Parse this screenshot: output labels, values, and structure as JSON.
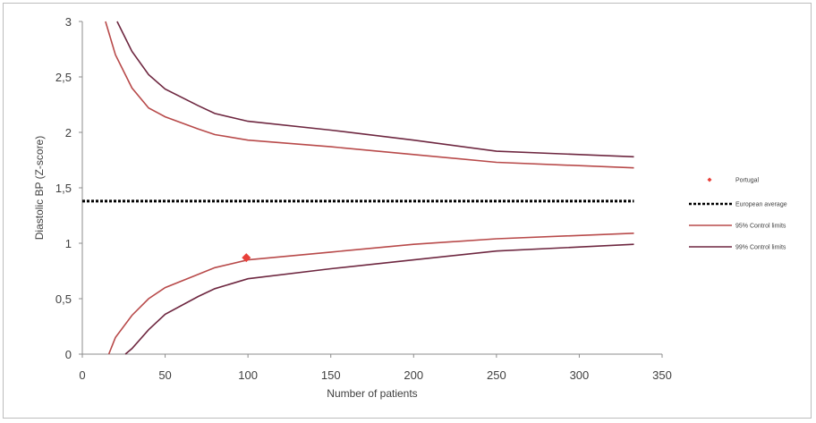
{
  "chart_data": {
    "type": "line",
    "title": "",
    "xlabel": "Number of patients",
    "ylabel": "Diastolic BP (Z-score)",
    "xlim": [
      0,
      350
    ],
    "ylim": [
      0,
      3
    ],
    "x_ticks": [
      0,
      50,
      100,
      150,
      200,
      250,
      300,
      350
    ],
    "y_ticks": [
      0,
      0.5,
      1,
      1.5,
      2,
      2.5,
      3
    ],
    "x_tick_labels": [
      "0",
      "50",
      "100",
      "150",
      "200",
      "250",
      "300",
      "350"
    ],
    "y_tick_labels": [
      "0",
      "0,5",
      "1",
      "1,5",
      "2",
      "2,5",
      "3"
    ],
    "grid": false,
    "legend_position": "right",
    "series": [
      {
        "name": "Portugal",
        "kind": "point",
        "color": "#e8403a",
        "points": [
          [
            99,
            0.87
          ]
        ]
      },
      {
        "name": "European average",
        "kind": "hline",
        "color": "#000000",
        "style": "dotted",
        "y": 1.38,
        "x_range": [
          0,
          333
        ]
      },
      {
        "name": "95% Control limits",
        "kind": "line",
        "color": "#b84a4a",
        "lines": [
          [
            [
              14,
              3.0
            ],
            [
              20,
              2.7
            ],
            [
              30,
              2.4
            ],
            [
              40,
              2.22
            ],
            [
              50,
              2.14
            ],
            [
              70,
              2.03
            ],
            [
              80,
              1.98
            ],
            [
              100,
              1.93
            ],
            [
              150,
              1.87
            ],
            [
              200,
              1.8
            ],
            [
              250,
              1.73
            ],
            [
              333,
              1.68
            ]
          ],
          [
            [
              16,
              0
            ],
            [
              20,
              0.15
            ],
            [
              30,
              0.35
            ],
            [
              40,
              0.5
            ],
            [
              50,
              0.6
            ],
            [
              70,
              0.72
            ],
            [
              80,
              0.78
            ],
            [
              100,
              0.85
            ],
            [
              150,
              0.92
            ],
            [
              200,
              0.99
            ],
            [
              250,
              1.04
            ],
            [
              333,
              1.09
            ]
          ]
        ]
      },
      {
        "name": "99% Control limits",
        "kind": "line",
        "color": "#6e2740",
        "lines": [
          [
            [
              21,
              3.0
            ],
            [
              30,
              2.73
            ],
            [
              40,
              2.52
            ],
            [
              50,
              2.39
            ],
            [
              70,
              2.24
            ],
            [
              80,
              2.17
            ],
            [
              100,
              2.1
            ],
            [
              150,
              2.02
            ],
            [
              200,
              1.93
            ],
            [
              250,
              1.83
            ],
            [
              333,
              1.78
            ]
          ],
          [
            [
              26,
              0
            ],
            [
              30,
              0.05
            ],
            [
              40,
              0.22
            ],
            [
              50,
              0.36
            ],
            [
              70,
              0.52
            ],
            [
              80,
              0.59
            ],
            [
              100,
              0.68
            ],
            [
              150,
              0.77
            ],
            [
              200,
              0.85
            ],
            [
              250,
              0.93
            ],
            [
              333,
              0.99
            ]
          ]
        ]
      }
    ]
  }
}
